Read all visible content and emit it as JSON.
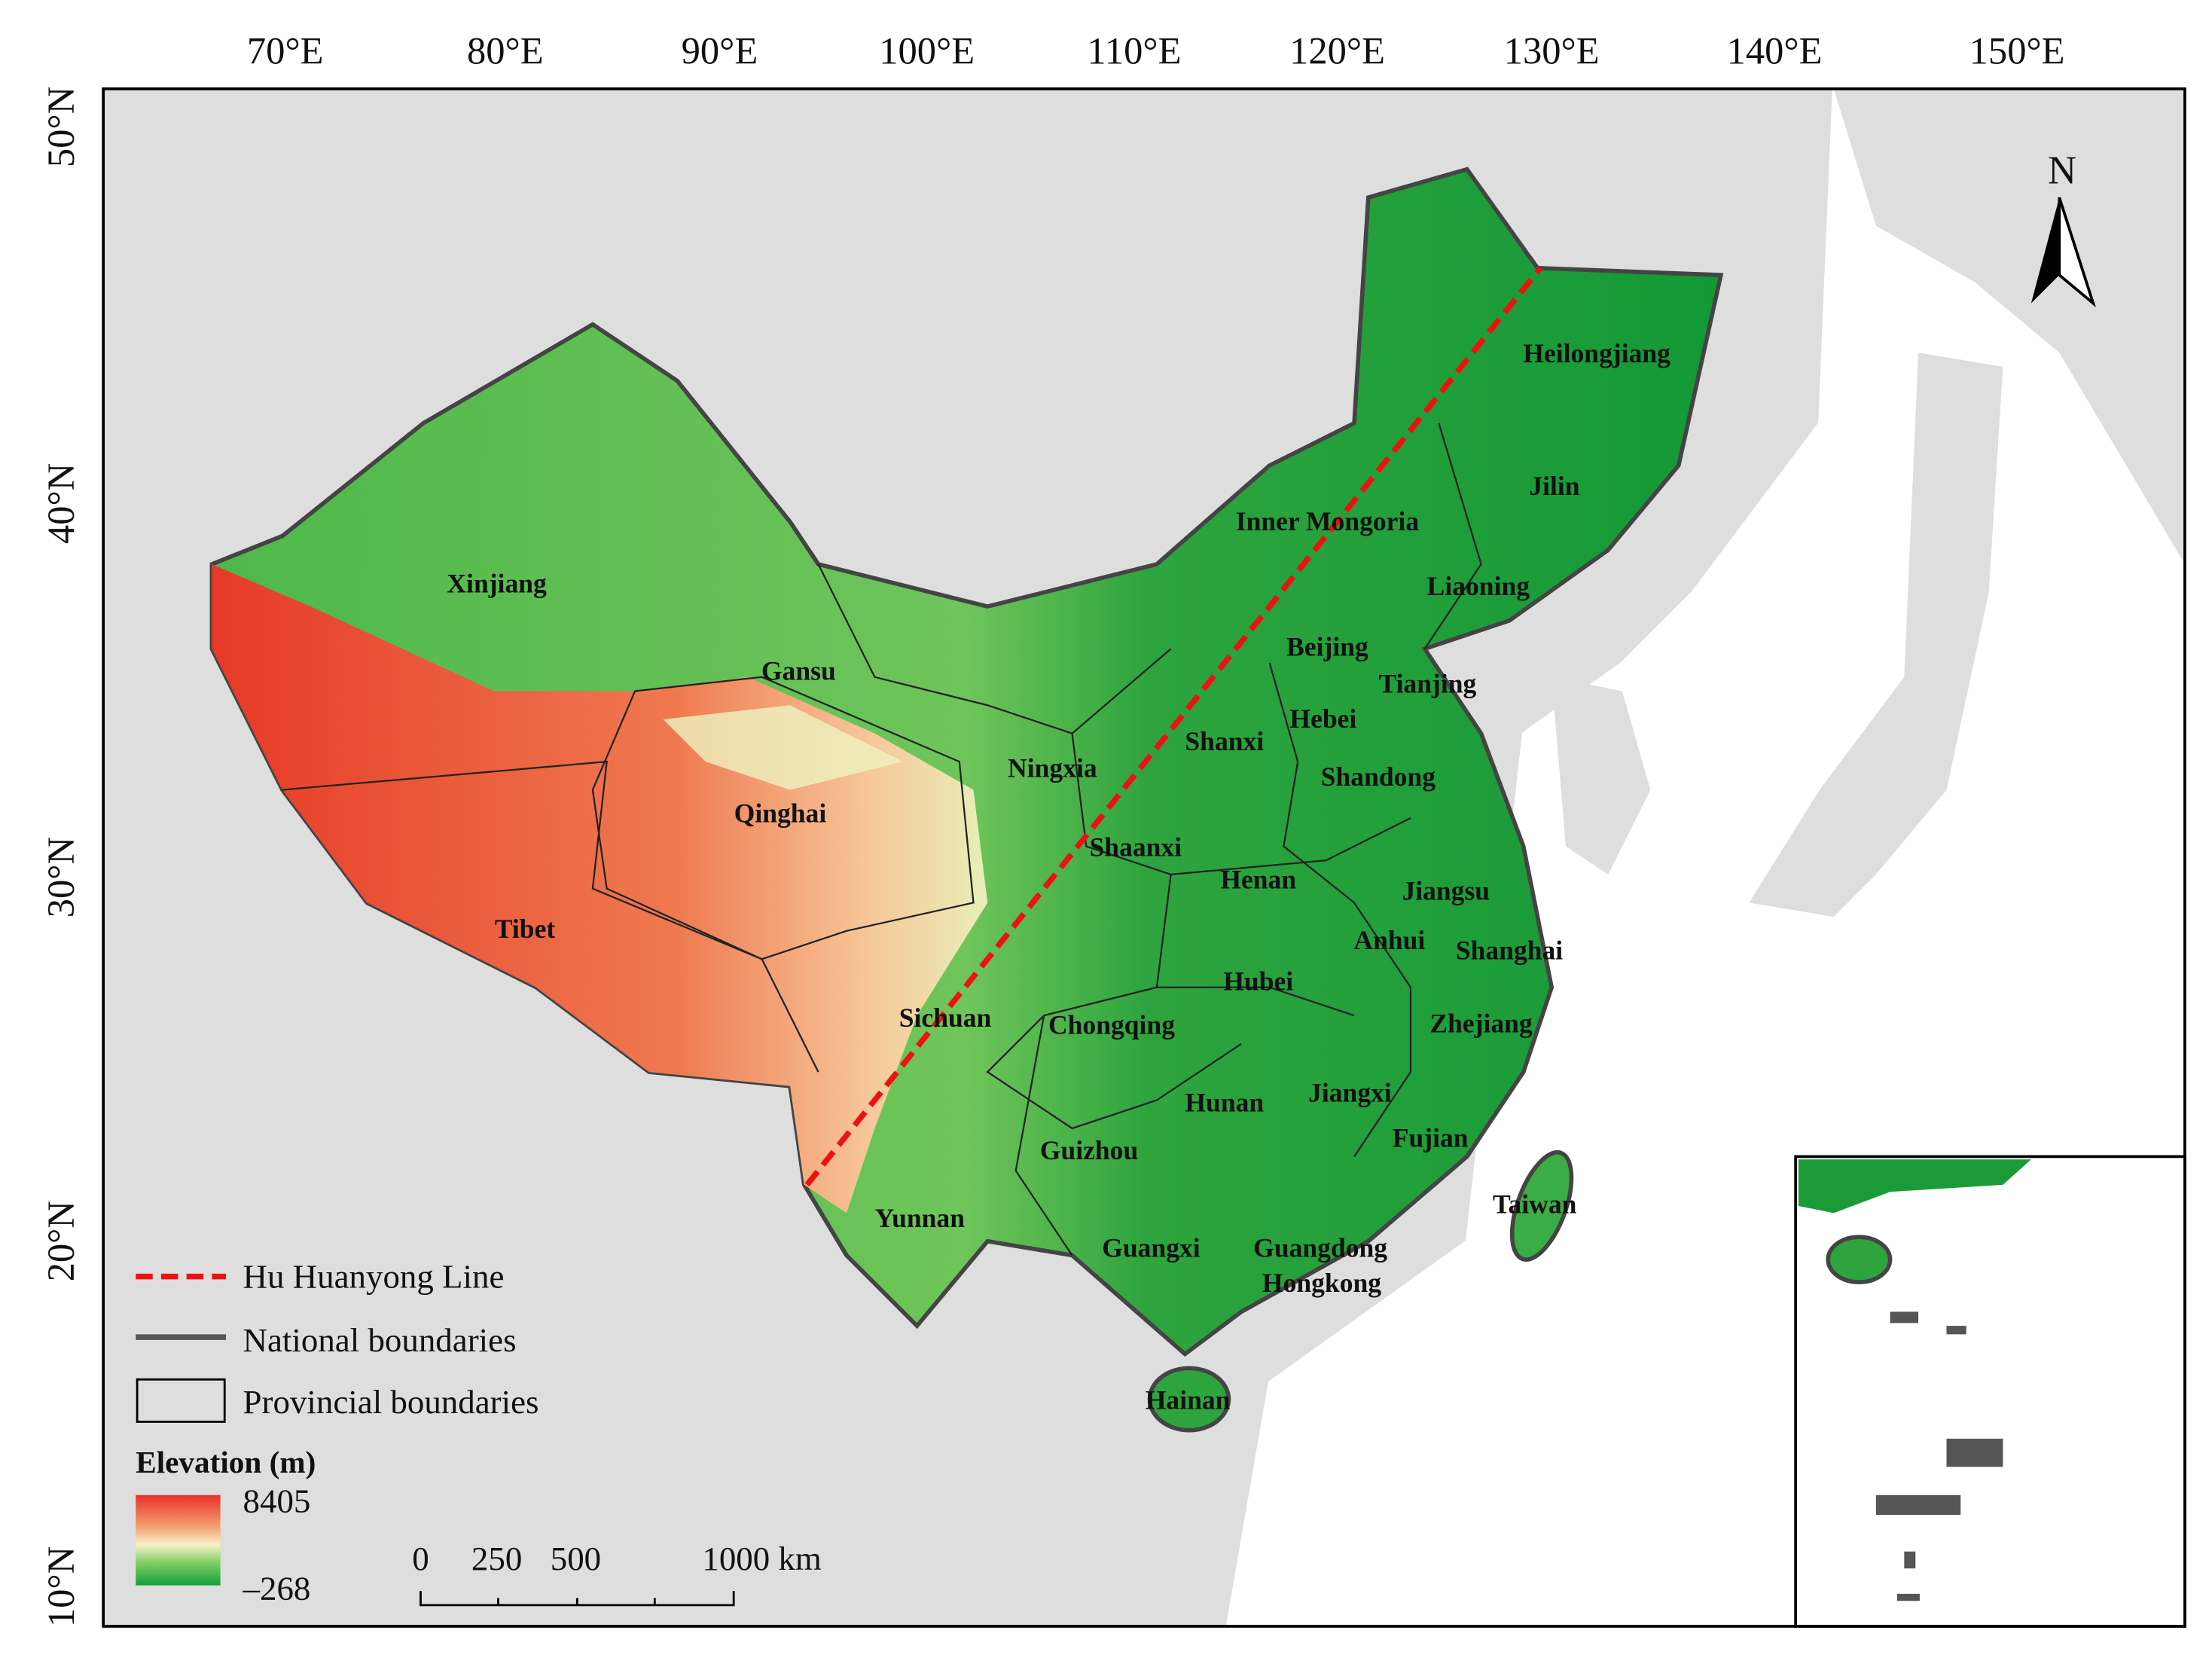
{
  "longitude_labels": [
    "70°E",
    "80°E",
    "90°E",
    "100°E",
    "110°E",
    "120°E",
    "130°E",
    "140°E",
    "150°E"
  ],
  "latitude_labels": [
    "50°N",
    "40°N",
    "30°N",
    "20°N",
    "10°N"
  ],
  "north_arrow": "N",
  "provinces": [
    "Xinjiang",
    "Gansu",
    "Qinghai",
    "Tibet",
    "Inner Mongoria",
    "Heilongjiang",
    "Jilin",
    "Liaoning",
    "Beijing",
    "Tianjing",
    "Hebei",
    "Shanxi",
    "Ningxia",
    "Shandong",
    "Shaanxi",
    "Henan",
    "Jiangsu",
    "Anhui",
    "Shanghai",
    "Hubei",
    "Sichuan",
    "Chongqing",
    "Zhejiang",
    "Jiangxi",
    "Hunan",
    "Guizhou",
    "Fujian",
    "Taiwan",
    "Yunnan",
    "Guangxi",
    "Guangdong",
    "Hongkong",
    "Hainan"
  ],
  "legend": {
    "items": [
      "Hu Huanyong Line",
      "National boundaries",
      "Provincial boundaries"
    ],
    "elevation_title": "Elevation (m)",
    "elevation_max": "8405",
    "elevation_min": "–268"
  },
  "scale_bar": [
    "0",
    "250",
    "500",
    "1000 km"
  ]
}
